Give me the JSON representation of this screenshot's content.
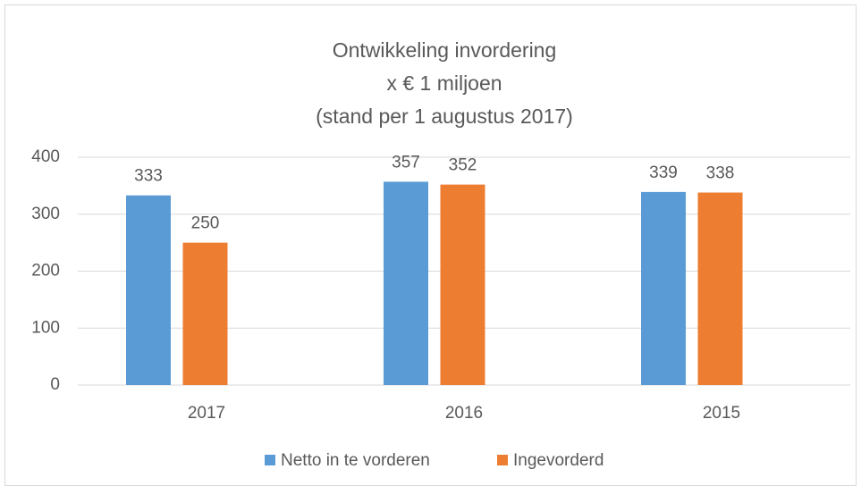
{
  "chart_data": {
    "type": "bar",
    "title": [
      "Ontwikkeling invordering",
      "x € 1 miljoen",
      "(stand per 1 augustus 2017)"
    ],
    "categories": [
      "2017",
      "2016",
      "2015"
    ],
    "series": [
      {
        "name": "Netto in te vorderen",
        "color": "#5b9bd5",
        "values": [
          333,
          357,
          339
        ]
      },
      {
        "name": "Ingevorderd",
        "color": "#ed7d31",
        "values": [
          250,
          352,
          338
        ]
      }
    ],
    "ylim": [
      0,
      400
    ],
    "yticks": [
      0,
      100,
      200,
      300,
      400
    ],
    "grid": true,
    "legend": "bottom"
  }
}
